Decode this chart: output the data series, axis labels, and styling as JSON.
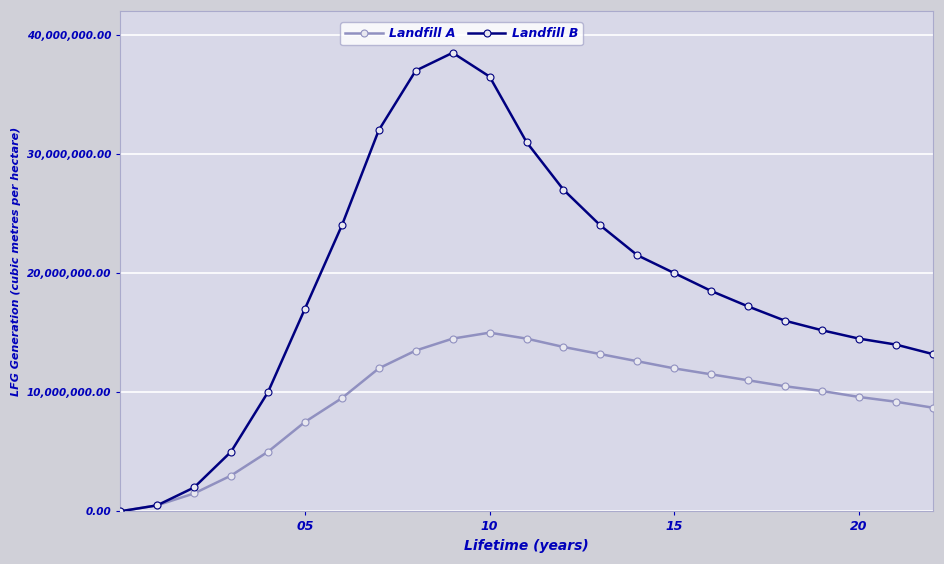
{
  "title": "",
  "xlabel": "Lifetime (years)",
  "ylabel": "LFG Generation (cubic metres per hectare)",
  "background_color": "#d0d0d8",
  "plot_bg_color": "#d8d8e8",
  "grid_color": "#ffffff",
  "text_color": "#0000bb",
  "x_landfill_A": [
    0,
    1,
    2,
    3,
    4,
    5,
    6,
    7,
    8,
    9,
    10,
    11,
    12,
    13,
    14,
    15,
    16,
    17,
    18,
    19,
    20,
    21,
    22
  ],
  "y_landfill_A": [
    0,
    500,
    1500,
    3000,
    5000,
    7500,
    9500,
    12000,
    13500,
    14500,
    15000,
    14500,
    13800,
    13200,
    12600,
    12000,
    11500,
    11000,
    10500,
    10100,
    9600,
    9200,
    8700
  ],
  "x_landfill_B": [
    0,
    1,
    2,
    3,
    4,
    5,
    6,
    7,
    8,
    9,
    10,
    11,
    12,
    13,
    14,
    15,
    16,
    17,
    18,
    19,
    20,
    21,
    22
  ],
  "y_landfill_B": [
    0,
    500,
    2000,
    5000,
    10000,
    17000,
    24000,
    32000,
    37000,
    38500,
    36500,
    31000,
    27000,
    24000,
    21500,
    20000,
    18500,
    17200,
    16000,
    15200,
    14500,
    14000,
    13200
  ],
  "color_A": "#9090c0",
  "color_B": "#000080",
  "marker_color": "#e8e8f0",
  "marker_size": 5,
  "line_width": 1.8,
  "ylim": [
    0,
    42000
  ],
  "xlim": [
    0,
    22
  ],
  "yticks": [
    0,
    10000,
    20000,
    30000,
    40000
  ],
  "yticklabels": [
    "0.00",
    "10,000,000.00",
    "20,000,000.00",
    "30,000,000.00",
    "40,000,000.00"
  ],
  "xticks": [
    5,
    10,
    15,
    20
  ],
  "xticklabels": [
    "05",
    "10",
    "15",
    "20"
  ],
  "legend_labels": [
    "Landfill A",
    "Landfill B"
  ],
  "figsize": [
    9.44,
    5.64
  ],
  "dpi": 100
}
